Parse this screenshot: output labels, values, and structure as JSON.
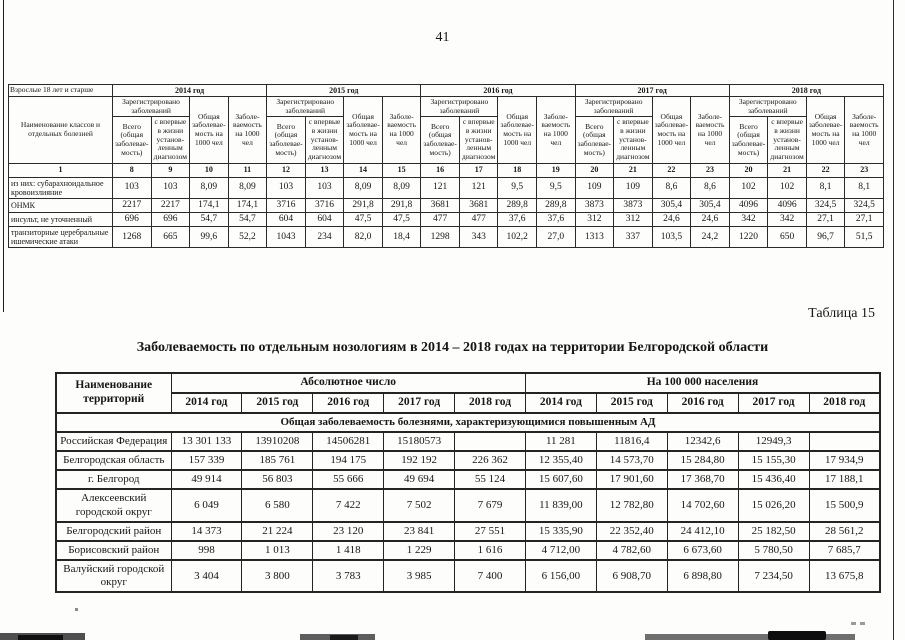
{
  "page": {
    "number": "41",
    "table_caption": "Таблица 15",
    "title": "Заболеваемость по отдельным нозологиям в 2014 – 2018 годах на территории Белгородской области"
  },
  "table1": {
    "age_group": "Взрослые 18 лет и старше",
    "name_header": "Наименование классов и отдельных болезней",
    "registered_header": "Зарегистрировано заболеваний",
    "col_total": "Всего (общая заболевае­мость)",
    "col_first_diag": "с впервые в жизни установ­ленным диагнозом",
    "col_overall_rate": "Общая заболевае­мость на 1000 чел",
    "col_rate": "Заболе­ваемость на 1000 чел",
    "years": [
      "2014 год",
      "2015 год",
      "2016 год",
      "2017 год",
      "2018 год"
    ],
    "number_row": [
      "1",
      "8",
      "9",
      "10",
      "11",
      "12",
      "13",
      "14",
      "15",
      "16",
      "17",
      "18",
      "19",
      "20",
      "21",
      "22",
      "23",
      "20",
      "21",
      "22",
      "23"
    ],
    "rows": [
      {
        "name": "из них: субарахноидальное кровоизлияние",
        "values": [
          "103",
          "103",
          "8,09",
          "8,09",
          "103",
          "103",
          "8,09",
          "8,09",
          "121",
          "121",
          "9,5",
          "9,5",
          "109",
          "109",
          "8,6",
          "8,6",
          "102",
          "102",
          "8,1",
          "8,1"
        ]
      },
      {
        "name": "ОНМК",
        "values": [
          "2217",
          "2217",
          "174,1",
          "174,1",
          "3716",
          "3716",
          "291,8",
          "291,8",
          "3681",
          "3681",
          "289,8",
          "289,8",
          "3873",
          "3873",
          "305,4",
          "305,4",
          "4096",
          "4096",
          "324,5",
          "324,5"
        ]
      },
      {
        "name": "инсульт, не уточненный",
        "values": [
          "696",
          "696",
          "54,7",
          "54,7",
          "604",
          "604",
          "47,5",
          "47,5",
          "477",
          "477",
          "37,6",
          "37,6",
          "312",
          "312",
          "24,6",
          "24,6",
          "342",
          "342",
          "27,1",
          "27,1"
        ]
      },
      {
        "name": "транзиторные церебральные ишемические атаки",
        "values": [
          "1268",
          "665",
          "99,6",
          "52,2",
          "1043",
          "234",
          "82,0",
          "18,4",
          "1298",
          "343",
          "102,2",
          "27,0",
          "1313",
          "337",
          "103,5",
          "24,2",
          "1220",
          "650",
          "96,7",
          "51,5"
        ]
      }
    ]
  },
  "table2": {
    "name_header": "Наименование территорий",
    "abs_header": "Абсолютное число",
    "per100k_header": "На 100 000 населения",
    "years": [
      "2014 год",
      "2015 год",
      "2016 год",
      "2017 год",
      "2018 год"
    ],
    "section_header": "Общая заболеваемость болезнями, характеризующимися повышенным АД",
    "rows": [
      {
        "name": "Российская Федерация",
        "values": [
          "13 301 133",
          "13910208",
          "14506281",
          "15180573",
          "",
          "11 281",
          "11816,4",
          "12342,6",
          "12949,3",
          ""
        ]
      },
      {
        "name": "Белгородская область",
        "values": [
          "157 339",
          "185 761",
          "194 175",
          "192 192",
          "226 362",
          "12 355,40",
          "14 573,70",
          "15 284,80",
          "15 155,30",
          "17 934,9"
        ]
      },
      {
        "name": "г. Белгород",
        "values": [
          "49 914",
          "56 803",
          "55 666",
          "49 694",
          "55 124",
          "15 607,60",
          "17 901,60",
          "17 368,70",
          "15 436,40",
          "17 188,1"
        ]
      },
      {
        "name": "Алексеевский городской округ",
        "values": [
          "6 049",
          "6 580",
          "7 422",
          "7 502",
          "7 679",
          "11 839,00",
          "12 782,80",
          "14 702,60",
          "15 026,20",
          "15 500,9"
        ]
      },
      {
        "name": "Белгородский район",
        "values": [
          "14 373",
          "21 224",
          "23 120",
          "23 841",
          "27 551",
          "15 335,90",
          "22 352,40",
          "24 412,10",
          "25 182,50",
          "28 561,2"
        ]
      },
      {
        "name": "Борисовский район",
        "values": [
          "998",
          "1 013",
          "1 418",
          "1 229",
          "1 616",
          "4 712,00",
          "4 782,60",
          "6 673,60",
          "5 780,50",
          "7 685,7"
        ]
      },
      {
        "name": "Валуйский городской округ",
        "values": [
          "3 404",
          "3 800",
          "3 783",
          "3 985",
          "7 400",
          "6 156,00",
          "6 908,70",
          "6 898,80",
          "7 234,50",
          "13 675,8"
        ]
      }
    ]
  }
}
